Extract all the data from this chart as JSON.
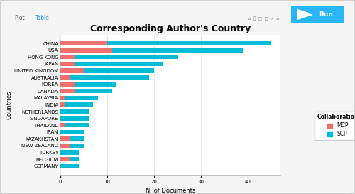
{
  "title": "Corresponding Author's Country",
  "xlabel": "N. of Documents",
  "ylabel": "Countries",
  "countries": [
    "GERMANY",
    "BELGIUM",
    "TURKEY",
    "NEW ZEALAND",
    "KAZAKHSTAN",
    "IRAN",
    "THAILAND",
    "SINGAPORE",
    "NETHERLANDS",
    "INDIA",
    "MALAYSIA",
    "CANADA",
    "KOREA",
    "AUSTRALIA",
    "UNITED KINGDOM",
    "JAPAN",
    "HONG KONG",
    "USA",
    "CHINA"
  ],
  "mcp": [
    0,
    2,
    0,
    2,
    2,
    0,
    1,
    0,
    0,
    1,
    1,
    3,
    3,
    2,
    5,
    3,
    3,
    11,
    10
  ],
  "scp": [
    4,
    2,
    4,
    3,
    3,
    5,
    5,
    6,
    6,
    6,
    7,
    8,
    9,
    17,
    15,
    19,
    22,
    28,
    35
  ],
  "mcp_color": "#f07070",
  "scp_color": "#00bcd4",
  "bg_color": "#f5f5f5",
  "plot_bg_color": "#ffffff",
  "title_fontsize": 9,
  "label_fontsize": 6,
  "tick_fontsize": 5,
  "legend_title": "Collaboration",
  "xlim": [
    0,
    47
  ],
  "xticks": [
    0,
    10,
    20,
    30,
    40
  ],
  "run_btn_color": "#29b6f6",
  "border_color": "#c0c0c0"
}
